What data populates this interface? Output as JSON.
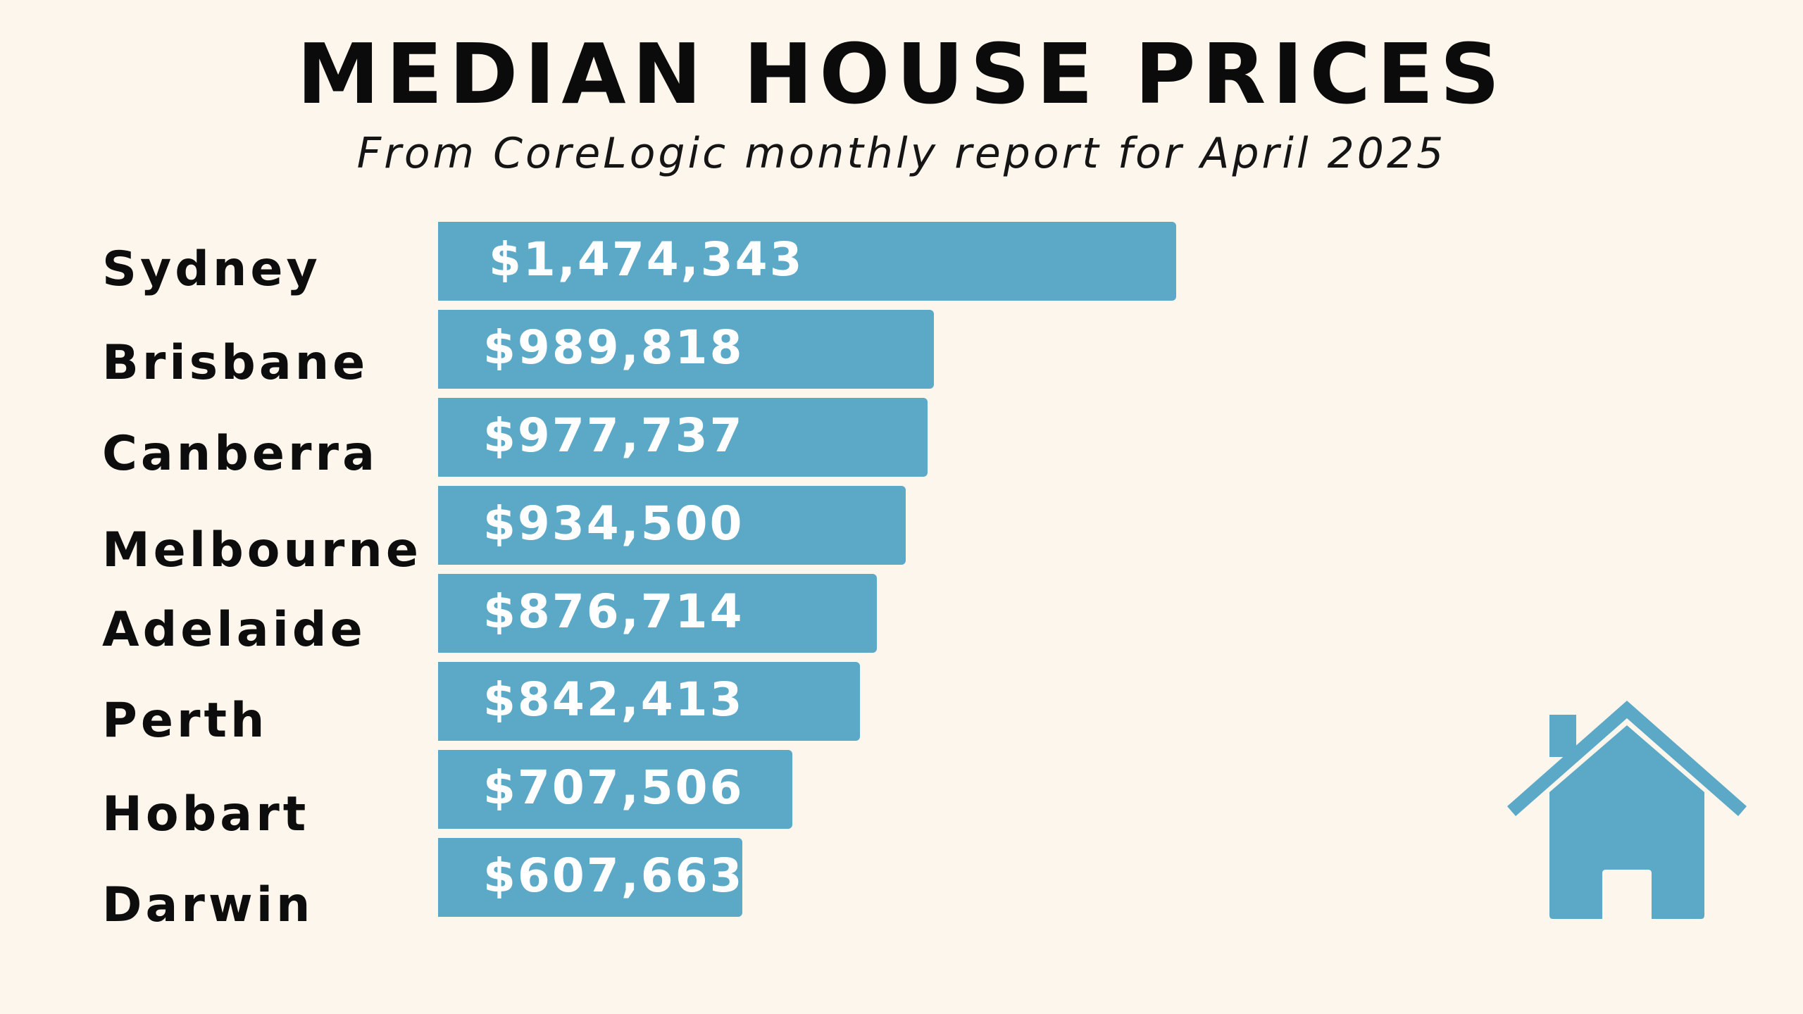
{
  "chart_data": {
    "type": "bar",
    "orientation": "horizontal",
    "title": "MEDIAN HOUSE PRICES",
    "subtitle": "From CoreLogic monthly report for April 2025",
    "categories": [
      "Sydney",
      "Brisbane",
      "Canberra",
      "Melbourne",
      "Adelaide",
      "Perth",
      "Hobart",
      "Darwin"
    ],
    "values": [
      1474343,
      989818,
      977737,
      934500,
      876714,
      842413,
      707506,
      607663
    ],
    "value_labels": [
      "$1,474,343",
      "$989,818",
      "$977,737",
      "$934,500",
      "$876,714",
      "$842,413",
      "$707,506",
      "$607,663"
    ],
    "xlabel": "",
    "ylabel": "",
    "grid": false,
    "legend": "none",
    "bar_color": "#5ba8c7"
  },
  "decoration": {
    "icon": "house-icon",
    "icon_color": "#5ba8c7"
  },
  "colors": {
    "background": "#fdf6ec",
    "text": "#0b0b0b",
    "value_text": "#ffffff"
  }
}
